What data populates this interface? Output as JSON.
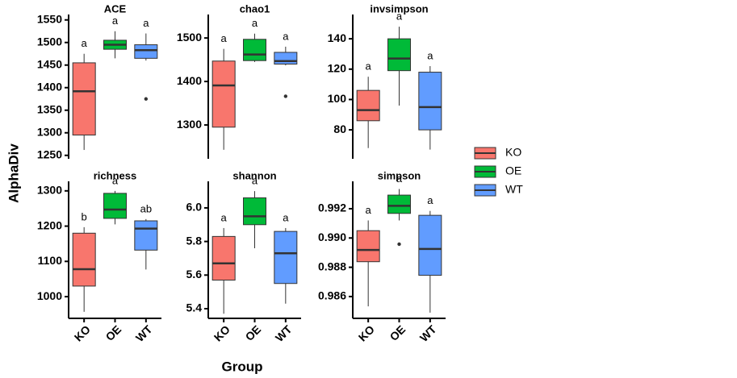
{
  "chart_data": [
    {
      "type": "box",
      "title": "ACE",
      "categories": [
        null,
        null,
        null
      ],
      "ylim": [
        1246,
        1562
      ],
      "yticks": [
        1250,
        1300,
        1350,
        1400,
        1450,
        1500,
        1550
      ],
      "boxes": [
        {
          "min": 1262,
          "q1": 1295,
          "median": 1392,
          "q3": 1455,
          "max": 1475,
          "outliers": []
        },
        {
          "min": 1465,
          "q1": 1485,
          "median": 1495,
          "q3": 1505,
          "max": 1525,
          "outliers": []
        },
        {
          "min": 1460,
          "q1": 1465,
          "median": 1483,
          "q3": 1495,
          "max": 1520,
          "outliers": [
            1375
          ]
        }
      ],
      "annotations": [
        "a",
        "a",
        "a"
      ]
    },
    {
      "type": "box",
      "title": "chao1",
      "categories": [
        null,
        null,
        null
      ],
      "ylim": [
        1226,
        1554
      ],
      "yticks": [
        1300,
        1400,
        1500
      ],
      "boxes": [
        {
          "min": 1243,
          "q1": 1295,
          "median": 1391,
          "q3": 1447,
          "max": 1475,
          "outliers": []
        },
        {
          "min": 1445,
          "q1": 1448,
          "median": 1462,
          "q3": 1497,
          "max": 1510,
          "outliers": []
        },
        {
          "min": 1437,
          "q1": 1440,
          "median": 1447,
          "q3": 1467,
          "max": 1480,
          "outliers": [
            1366
          ]
        }
      ],
      "annotations": [
        "a",
        "a",
        "a"
      ]
    },
    {
      "type": "box",
      "title": "invsimpson",
      "categories": [
        null,
        null,
        null
      ],
      "ylim": [
        62,
        156
      ],
      "yticks": [
        80,
        100,
        120,
        140
      ],
      "boxes": [
        {
          "min": 68,
          "q1": 86,
          "median": 93,
          "q3": 106,
          "max": 115,
          "outliers": []
        },
        {
          "min": 96,
          "q1": 119,
          "median": 127,
          "q3": 140,
          "max": 148,
          "outliers": []
        },
        {
          "min": 67,
          "q1": 80,
          "median": 95,
          "q3": 118,
          "max": 122,
          "outliers": []
        }
      ],
      "annotations": [
        "a",
        "a",
        "a"
      ]
    },
    {
      "type": "box",
      "title": "richness",
      "categories": [
        "KO",
        "OE",
        "WT"
      ],
      "ylim": [
        943,
        1327
      ],
      "yticks": [
        1000,
        1100,
        1200,
        1300
      ],
      "boxes": [
        {
          "min": 957,
          "q1": 1030,
          "median": 1078,
          "q3": 1180,
          "max": 1197,
          "outliers": []
        },
        {
          "min": 1205,
          "q1": 1222,
          "median": 1247,
          "q3": 1293,
          "max": 1300,
          "outliers": []
        },
        {
          "min": 1077,
          "q1": 1132,
          "median": 1193,
          "q3": 1215,
          "max": 1220,
          "outliers": []
        }
      ],
      "annotations": [
        "b",
        "a",
        "ab"
      ]
    },
    {
      "type": "box",
      "title": "shannon",
      "categories": [
        "KO",
        "OE",
        "WT"
      ],
      "ylim": [
        5.352,
        6.158
      ],
      "yticks": [
        5.4,
        5.6,
        5.8,
        {
          "value": 6,
          "label": "6.0"
        }
      ],
      "boxes": [
        {
          "min": 5.37,
          "q1": 5.57,
          "median": 5.67,
          "q3": 5.83,
          "max": 5.88,
          "outliers": []
        },
        {
          "min": 5.76,
          "q1": 5.9,
          "median": 5.95,
          "q3": 6.06,
          "max": 6.1,
          "outliers": []
        },
        {
          "min": 5.43,
          "q1": 5.55,
          "median": 5.73,
          "q3": 5.86,
          "max": 5.88,
          "outliers": []
        }
      ],
      "annotations": [
        "a",
        "a",
        "a"
      ]
    },
    {
      "type": "box",
      "title": "simpson",
      "categories": [
        "KO",
        "OE",
        "WT"
      ],
      "ylim": [
        0.98462,
        0.99387
      ],
      "yticks": [
        0.986,
        0.988,
        {
          "value": 0.99,
          "label": "0.990"
        },
        0.992
      ],
      "boxes": [
        {
          "min": 0.98533,
          "q1": 0.98838,
          "median": 0.98918,
          "q3": 0.9905,
          "max": 0.9912,
          "outliers": []
        },
        {
          "min": 0.9912,
          "q1": 0.99168,
          "median": 0.9922,
          "q3": 0.99293,
          "max": 0.99335,
          "outliers": [
            0.98958
          ]
        },
        {
          "min": 0.9849,
          "q1": 0.98745,
          "median": 0.98925,
          "q3": 0.99155,
          "max": 0.99185,
          "outliers": []
        }
      ],
      "annotations": [
        "a",
        "a",
        "a"
      ]
    }
  ],
  "xlabel": "Group",
  "ylabel": "AlphaDiv",
  "legend": {
    "entries": [
      {
        "name": "KO",
        "color": "#F8766D"
      },
      {
        "name": "OE",
        "color": "#00BA38"
      },
      {
        "name": "WT",
        "color": "#619CFF"
      }
    ]
  }
}
